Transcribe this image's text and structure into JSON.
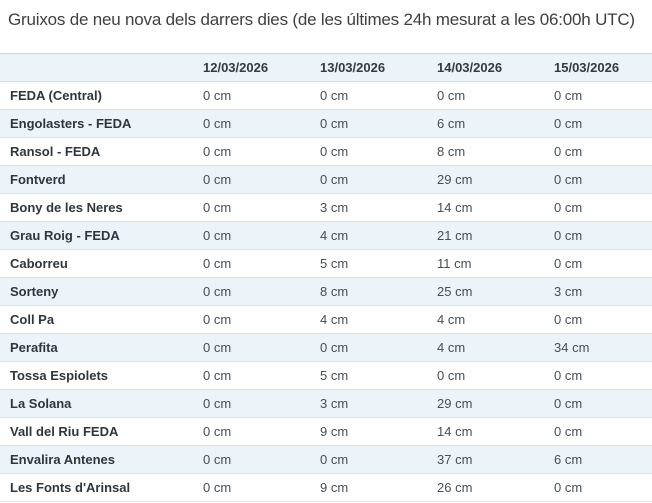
{
  "page": {
    "title": "Gruixos de neu nova dels darrers dies (de les últimes 24h mesurat a les 06:00h UTC)"
  },
  "table": {
    "station_column_header": "",
    "date_headers": [
      "12/03/2026",
      "13/03/2026",
      "14/03/2026",
      "15/03/2026"
    ],
    "unit": "cm",
    "rows": [
      {
        "station": "FEDA (Central)",
        "values": [
          "0 cm",
          "0 cm",
          "0 cm",
          "0 cm"
        ]
      },
      {
        "station": "Engolasters - FEDA",
        "values": [
          "0 cm",
          "0 cm",
          "6 cm",
          "0 cm"
        ]
      },
      {
        "station": "Ransol - FEDA",
        "values": [
          "0 cm",
          "0 cm",
          "8 cm",
          "0 cm"
        ]
      },
      {
        "station": "Fontverd",
        "values": [
          "0 cm",
          "0 cm",
          "29 cm",
          "0 cm"
        ]
      },
      {
        "station": "Bony de les Neres",
        "values": [
          "0 cm",
          "3 cm",
          "14 cm",
          "0 cm"
        ]
      },
      {
        "station": "Grau Roig - FEDA",
        "values": [
          "0 cm",
          "4 cm",
          "21 cm",
          "0 cm"
        ]
      },
      {
        "station": "Caborreu",
        "values": [
          "0 cm",
          "5 cm",
          "11 cm",
          "0 cm"
        ]
      },
      {
        "station": "Sorteny",
        "values": [
          "0 cm",
          "8 cm",
          "25 cm",
          "3 cm"
        ]
      },
      {
        "station": "Coll Pa",
        "values": [
          "0 cm",
          "4 cm",
          "4 cm",
          "0 cm"
        ]
      },
      {
        "station": "Perafita",
        "values": [
          "0 cm",
          "0 cm",
          "4 cm",
          "34 cm"
        ]
      },
      {
        "station": "Tossa Espiolets",
        "values": [
          "0 cm",
          "5 cm",
          "0 cm",
          "0 cm"
        ]
      },
      {
        "station": "La Solana",
        "values": [
          "0 cm",
          "3 cm",
          "29 cm",
          "0 cm"
        ]
      },
      {
        "station": "Vall del Riu FEDA",
        "values": [
          "0 cm",
          "9 cm",
          "14 cm",
          "0 cm"
        ]
      },
      {
        "station": "Envalira Antenes",
        "values": [
          "0 cm",
          "0 cm",
          "37 cm",
          "6 cm"
        ]
      },
      {
        "station": "Les Fonts d'Arinsal",
        "values": [
          "0 cm",
          "9 cm",
          "26 cm",
          "0 cm"
        ]
      }
    ]
  },
  "colors": {
    "stripe_background": "#ecf4fa",
    "header_background": "#ecf4fa",
    "row_border": "#dde1e4",
    "table_top_border": "#c9d2d8",
    "title_text": "#3f3f3f",
    "station_text": "#2f363d",
    "value_text": "#474e54"
  }
}
